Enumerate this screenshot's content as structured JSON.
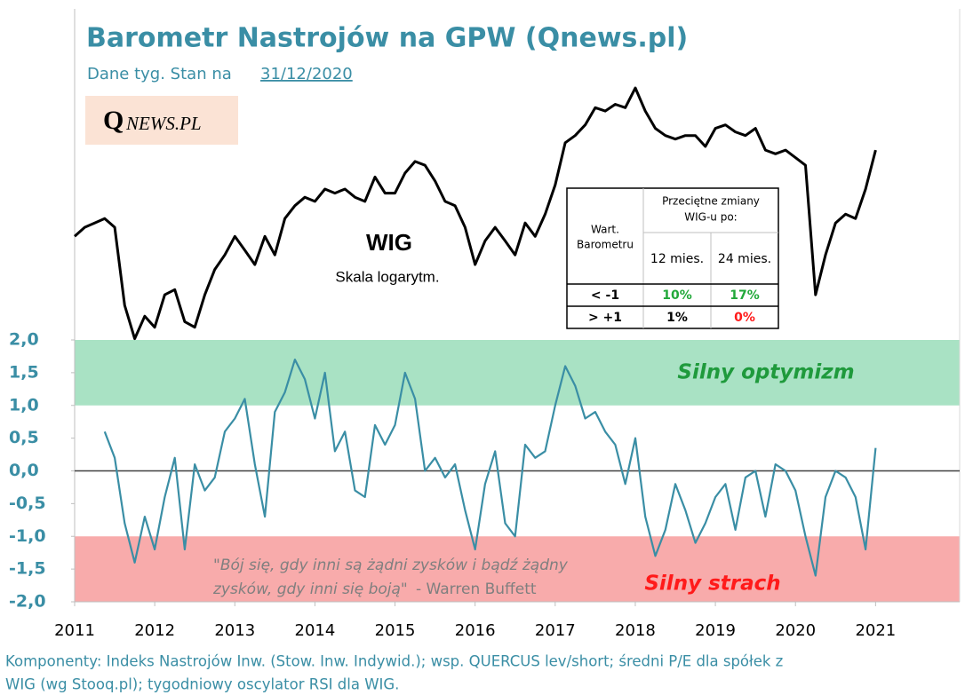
{
  "chart_data": {
    "type": "line",
    "title": "Barometr Nastrojów na GPW (Qnews.pl)",
    "subtitle": "Dane tyg. Stan na",
    "date": "31/12/2020",
    "logo": {
      "initial": "Q",
      "rest": "NEWS.PL"
    },
    "x": [
      2011.0,
      2011.125,
      2011.25,
      2011.375,
      2011.5,
      2011.625,
      2011.75,
      2011.875,
      2012.0,
      2012.125,
      2012.25,
      2012.375,
      2012.5,
      2012.625,
      2012.75,
      2012.875,
      2013.0,
      2013.125,
      2013.25,
      2013.375,
      2013.5,
      2013.625,
      2013.75,
      2013.875,
      2014.0,
      2014.125,
      2014.25,
      2014.375,
      2014.5,
      2014.625,
      2014.75,
      2014.875,
      2015.0,
      2015.125,
      2015.25,
      2015.375,
      2015.5,
      2015.625,
      2015.75,
      2015.875,
      2016.0,
      2016.125,
      2016.25,
      2016.375,
      2016.5,
      2016.625,
      2016.75,
      2016.875,
      2017.0,
      2017.125,
      2017.25,
      2017.375,
      2017.5,
      2017.625,
      2017.75,
      2017.875,
      2018.0,
      2018.125,
      2018.25,
      2018.375,
      2018.5,
      2018.625,
      2018.75,
      2018.875,
      2019.0,
      2019.125,
      2019.25,
      2019.375,
      2019.5,
      2019.625,
      2019.75,
      2019.875,
      2020.0,
      2020.125,
      2020.25,
      2020.375,
      2020.5,
      2020.625,
      2020.75,
      2020.875,
      2021.0
    ],
    "xlim": [
      2011,
      2022.05
    ],
    "xticks": [
      2011,
      2012,
      2013,
      2014,
      2015,
      2016,
      2017,
      2018,
      2019,
      2020,
      2021
    ],
    "ylim": [
      -2,
      2
    ],
    "yticks": [
      {
        "value": -2,
        "label": "-2,0"
      },
      {
        "value": -1.5,
        "label": "-1,5"
      },
      {
        "value": -1,
        "label": "-1,0"
      },
      {
        "value": -0.5,
        "label": "-0,5"
      },
      {
        "value": 0,
        "label": "0,0"
      },
      {
        "value": 0.5,
        "label": "0,5"
      },
      {
        "value": 1,
        "label": "1,0"
      },
      {
        "value": 1.5,
        "label": "1,5"
      },
      {
        "value": 2,
        "label": "2,0"
      }
    ],
    "y2lim": [
      20000,
      80000
    ],
    "y2log": true,
    "bands": [
      {
        "from": 1,
        "to": 2,
        "label": "Silny optymizm",
        "color": "#a9e2c4",
        "text_color": "#1f9a3c"
      },
      {
        "from": -2,
        "to": -1,
        "label": "Silny strach",
        "color": "#f8abab",
        "text_color": "#ff1a1a"
      }
    ],
    "series": [
      {
        "name": "WIG",
        "color": "#000000",
        "axis": "y2",
        "values": [
          47000,
          48000,
          48500,
          49000,
          48000,
          40000,
          37000,
          39000,
          38000,
          41000,
          41500,
          38500,
          38000,
          41000,
          43500,
          45000,
          47000,
          45500,
          44000,
          47000,
          45000,
          49000,
          50500,
          51500,
          51000,
          52500,
          52000,
          52500,
          51500,
          51000,
          54000,
          52000,
          52000,
          54500,
          56000,
          55500,
          53500,
          51000,
          50500,
          48000,
          44000,
          46500,
          48000,
          46500,
          45000,
          48500,
          47000,
          49500,
          53000,
          58500,
          59500,
          61000,
          63500,
          63000,
          64000,
          63500,
          66500,
          63000,
          60500,
          59500,
          59000,
          59500,
          59500,
          58000,
          60500,
          61000,
          60000,
          59500,
          60500,
          57500,
          57000,
          57500,
          56500,
          55500,
          41000,
          45000,
          48500,
          49500,
          49000,
          52500,
          57500
        ]
      },
      {
        "name": "Barometr",
        "color": "#3a8ea5",
        "values": [
          null,
          null,
          null,
          0.6,
          0.2,
          -0.8,
          -1.4,
          -0.7,
          -1.2,
          -0.4,
          0.2,
          -1.2,
          0.1,
          -0.3,
          -0.1,
          0.6,
          0.8,
          1.1,
          0.1,
          -0.7,
          0.9,
          1.2,
          1.7,
          1.4,
          0.8,
          1.5,
          0.3,
          0.6,
          -0.3,
          -0.4,
          0.7,
          0.4,
          0.7,
          1.5,
          1.1,
          0.0,
          0.2,
          -0.1,
          0.1,
          -0.6,
          -1.2,
          -0.2,
          0.3,
          -0.8,
          -1.0,
          0.4,
          0.2,
          0.3,
          1.0,
          1.6,
          1.3,
          0.8,
          0.9,
          0.6,
          0.4,
          -0.2,
          0.5,
          -0.7,
          -1.3,
          -0.9,
          -0.2,
          -0.6,
          -1.1,
          -0.8,
          -0.4,
          -0.2,
          -0.9,
          -0.1,
          0.0,
          -0.7,
          0.1,
          0.0,
          -0.3,
          -1.0,
          -1.6,
          -0.4,
          0.0,
          -0.1,
          -0.4,
          -1.2,
          0.35
        ]
      }
    ],
    "annotations": {
      "wig": "WIG",
      "scale": "Skala logarytm.",
      "quote": [
        "\"Bój się, gdy inni są żądni zysków i bądź żądny",
        "zysków, gdy inni się boją\""
      ],
      "quote_author": " - Warren Buffett"
    },
    "table": {
      "col0": [
        "Wart.",
        "Barometru"
      ],
      "head": [
        "Przeciętne zmiany",
        "WIG-u po:"
      ],
      "cols": [
        "12 mies.",
        "24 mies."
      ],
      "rows": [
        {
          "label": "< -1",
          "cells": [
            "10%",
            "17%"
          ],
          "colors": [
            "#22a83a",
            "#22a83a"
          ]
        },
        {
          "label": "> +1",
          "cells": [
            "1%",
            "0%"
          ],
          "colors": [
            "#000000",
            "#ff1a1a"
          ]
        }
      ]
    },
    "footnote": [
      "Komponenty: Indeks Nastrojów Inw. (Stow. Inw. Indywid.); wsp. QUERCUS lev/short; średni P/E dla spółek z",
      "WIG (wg Stooq.pl); tygodniowy oscylator RSI dla WIG."
    ]
  }
}
